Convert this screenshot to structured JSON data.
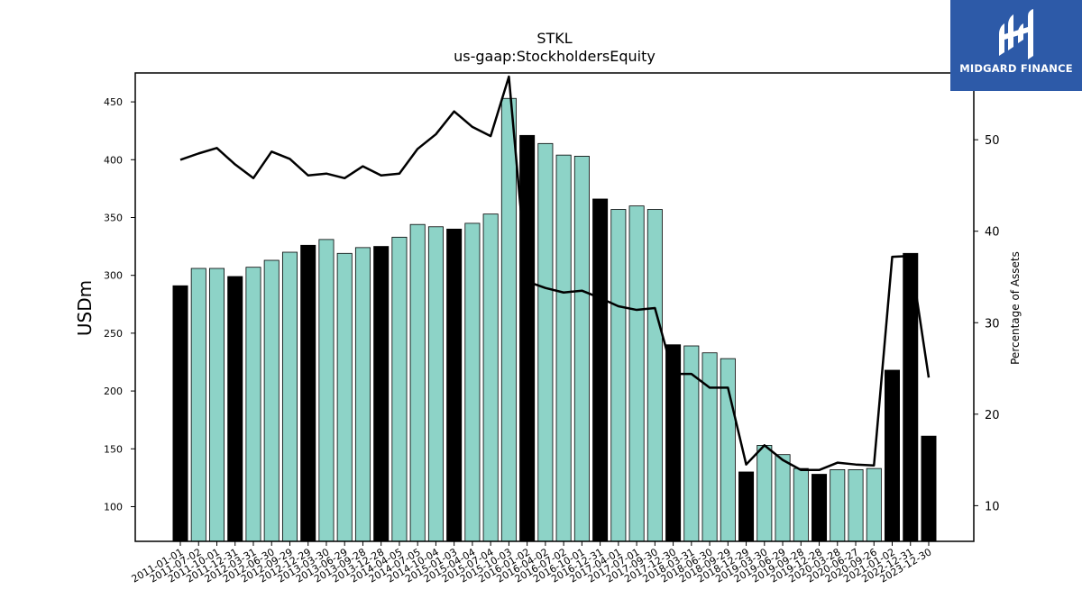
{
  "chart_data": {
    "type": "bar",
    "title": "STKL",
    "subtitle": "us-gaap:StockholdersEquity",
    "ylabel": "USDm",
    "y2label": "Percentage of Assets",
    "ylim": [
      70,
      475
    ],
    "y2lim": [
      6.1,
      57.3
    ],
    "yticks": [
      100,
      150,
      200,
      250,
      300,
      350,
      400,
      450
    ],
    "y2ticks": [
      10,
      20,
      30,
      40,
      50
    ],
    "grid": false,
    "categories": [
      "2011-01-01",
      "2011-07-02",
      "2011-10-01",
      "2011-12-31",
      "2012-03-31",
      "2012-06-30",
      "2012-09-29",
      "2012-12-29",
      "2013-03-30",
      "2013-06-29",
      "2013-09-28",
      "2013-12-28",
      "2014-04-05",
      "2014-07-05",
      "2014-10-04",
      "2015-01-03",
      "2015-04-04",
      "2015-07-04",
      "2015-10-03",
      "2016-01-02",
      "2016-04-02",
      "2016-07-02",
      "2016-10-01",
      "2016-12-31",
      "2017-04-01",
      "2017-07-01",
      "2017-09-30",
      "2017-12-30",
      "2018-03-31",
      "2018-06-30",
      "2018-09-29",
      "2018-12-29",
      "2019-03-30",
      "2019-06-29",
      "2019-09-28",
      "2019-12-28",
      "2020-03-28",
      "2020-06-27",
      "2020-09-26",
      "2021-01-02",
      "2022-12-31",
      "2023-12-30"
    ],
    "values": [
      291,
      306,
      306,
      299,
      307,
      313,
      320,
      326,
      331,
      319,
      324,
      325,
      333,
      344,
      342,
      340,
      345,
      353,
      453,
      421,
      414,
      404,
      403,
      366,
      357,
      360,
      357,
      240,
      239,
      233,
      228,
      130,
      153,
      145,
      133,
      128,
      132,
      132,
      133,
      218,
      319,
      161
    ],
    "highlight": [
      true,
      false,
      false,
      true,
      false,
      false,
      false,
      true,
      false,
      false,
      false,
      true,
      false,
      false,
      false,
      true,
      false,
      false,
      false,
      true,
      false,
      false,
      false,
      true,
      false,
      false,
      false,
      true,
      false,
      false,
      false,
      true,
      false,
      false,
      false,
      true,
      false,
      false,
      false,
      true,
      true,
      true
    ],
    "series": [
      {
        "name": "Percentage of Assets",
        "values": [
          47.8,
          48.5,
          49.1,
          47.3,
          45.8,
          48.7,
          47.9,
          46.1,
          46.3,
          45.8,
          47.1,
          46.1,
          46.3,
          49.0,
          50.6,
          53.1,
          51.4,
          50.4,
          56.9,
          34.5,
          33.8,
          33.3,
          33.5,
          32.7,
          31.8,
          31.4,
          31.6,
          24.4,
          24.4,
          22.9,
          22.9,
          14.5,
          16.6,
          15.0,
          13.9,
          13.9,
          14.7,
          14.5,
          14.4,
          37.2,
          37.3,
          24.0
        ]
      }
    ],
    "colors": {
      "bar": "#8dd3c7",
      "highlight_bar": "#000000",
      "line": "#000000"
    }
  },
  "logo": {
    "text": "MIDGARD FINANCE",
    "background": "#2d5aa8"
  }
}
